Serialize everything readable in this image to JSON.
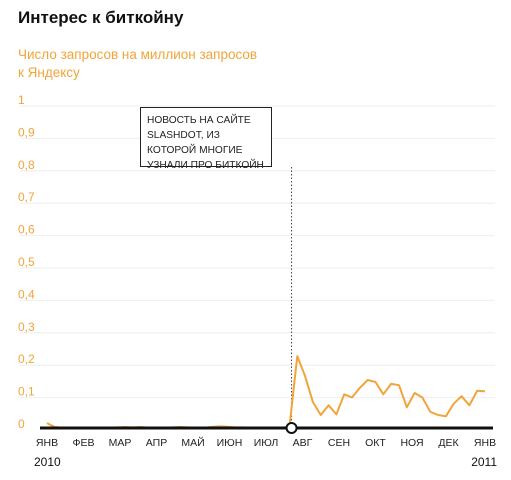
{
  "header": {
    "title": "Интерес к биткойну",
    "subtitle": "Число запросов на миллион запросов к Яндексу"
  },
  "chart_data": {
    "type": "line",
    "title": "Интерес к биткойну",
    "ylabel": "Число запросов на миллион запросов к Яндексу",
    "ylim": [
      0,
      1
    ],
    "yticks": [
      "0",
      "0,1",
      "0,2",
      "0,3",
      "0,4",
      "0,5",
      "0,6",
      "0,7",
      "0,8",
      "0,9",
      "1"
    ],
    "months": [
      "ЯНВ",
      "ФЕВ",
      "МАР",
      "АПР",
      "МАЙ",
      "ИЮН",
      "ИЮЛ",
      "АВГ",
      "СЕН",
      "ОКТ",
      "НОЯ",
      "ДЕК",
      "ЯНВ"
    ],
    "years": {
      "start": "2010",
      "end": "2011"
    },
    "grid": true,
    "line_color": "#f2a43a",
    "series": [
      {
        "values": [
          0.015,
          0.003,
          0.001,
          0.001,
          0.001,
          0.001,
          0.001,
          0.001,
          0.001,
          0.002,
          0.003,
          0.002,
          0.003,
          0.001,
          0.001,
          0.001,
          0.002,
          0.003,
          0.002,
          0.001,
          0.001,
          0.003,
          0.005,
          0.004,
          0.002,
          0.002,
          0.001,
          0.001,
          0.001,
          0.001,
          0.001,
          0.005,
          0.222,
          0.16,
          0.08,
          0.04,
          0.07,
          0.042,
          0.104,
          0.094,
          0.124,
          0.148,
          0.142,
          0.104,
          0.136,
          0.132,
          0.064,
          0.108,
          0.094,
          0.05,
          0.04,
          0.036,
          0.075,
          0.098,
          0.07,
          0.115,
          0.113
        ]
      }
    ],
    "annotation": {
      "text": "НОВОСТЬ НА САЙТЕ SLASHDOT, ИЗ КОТОРОЙ МНОГИЕ УЗНАЛИ ПРО БИТКОЙН",
      "month_position": 6.7
    }
  }
}
